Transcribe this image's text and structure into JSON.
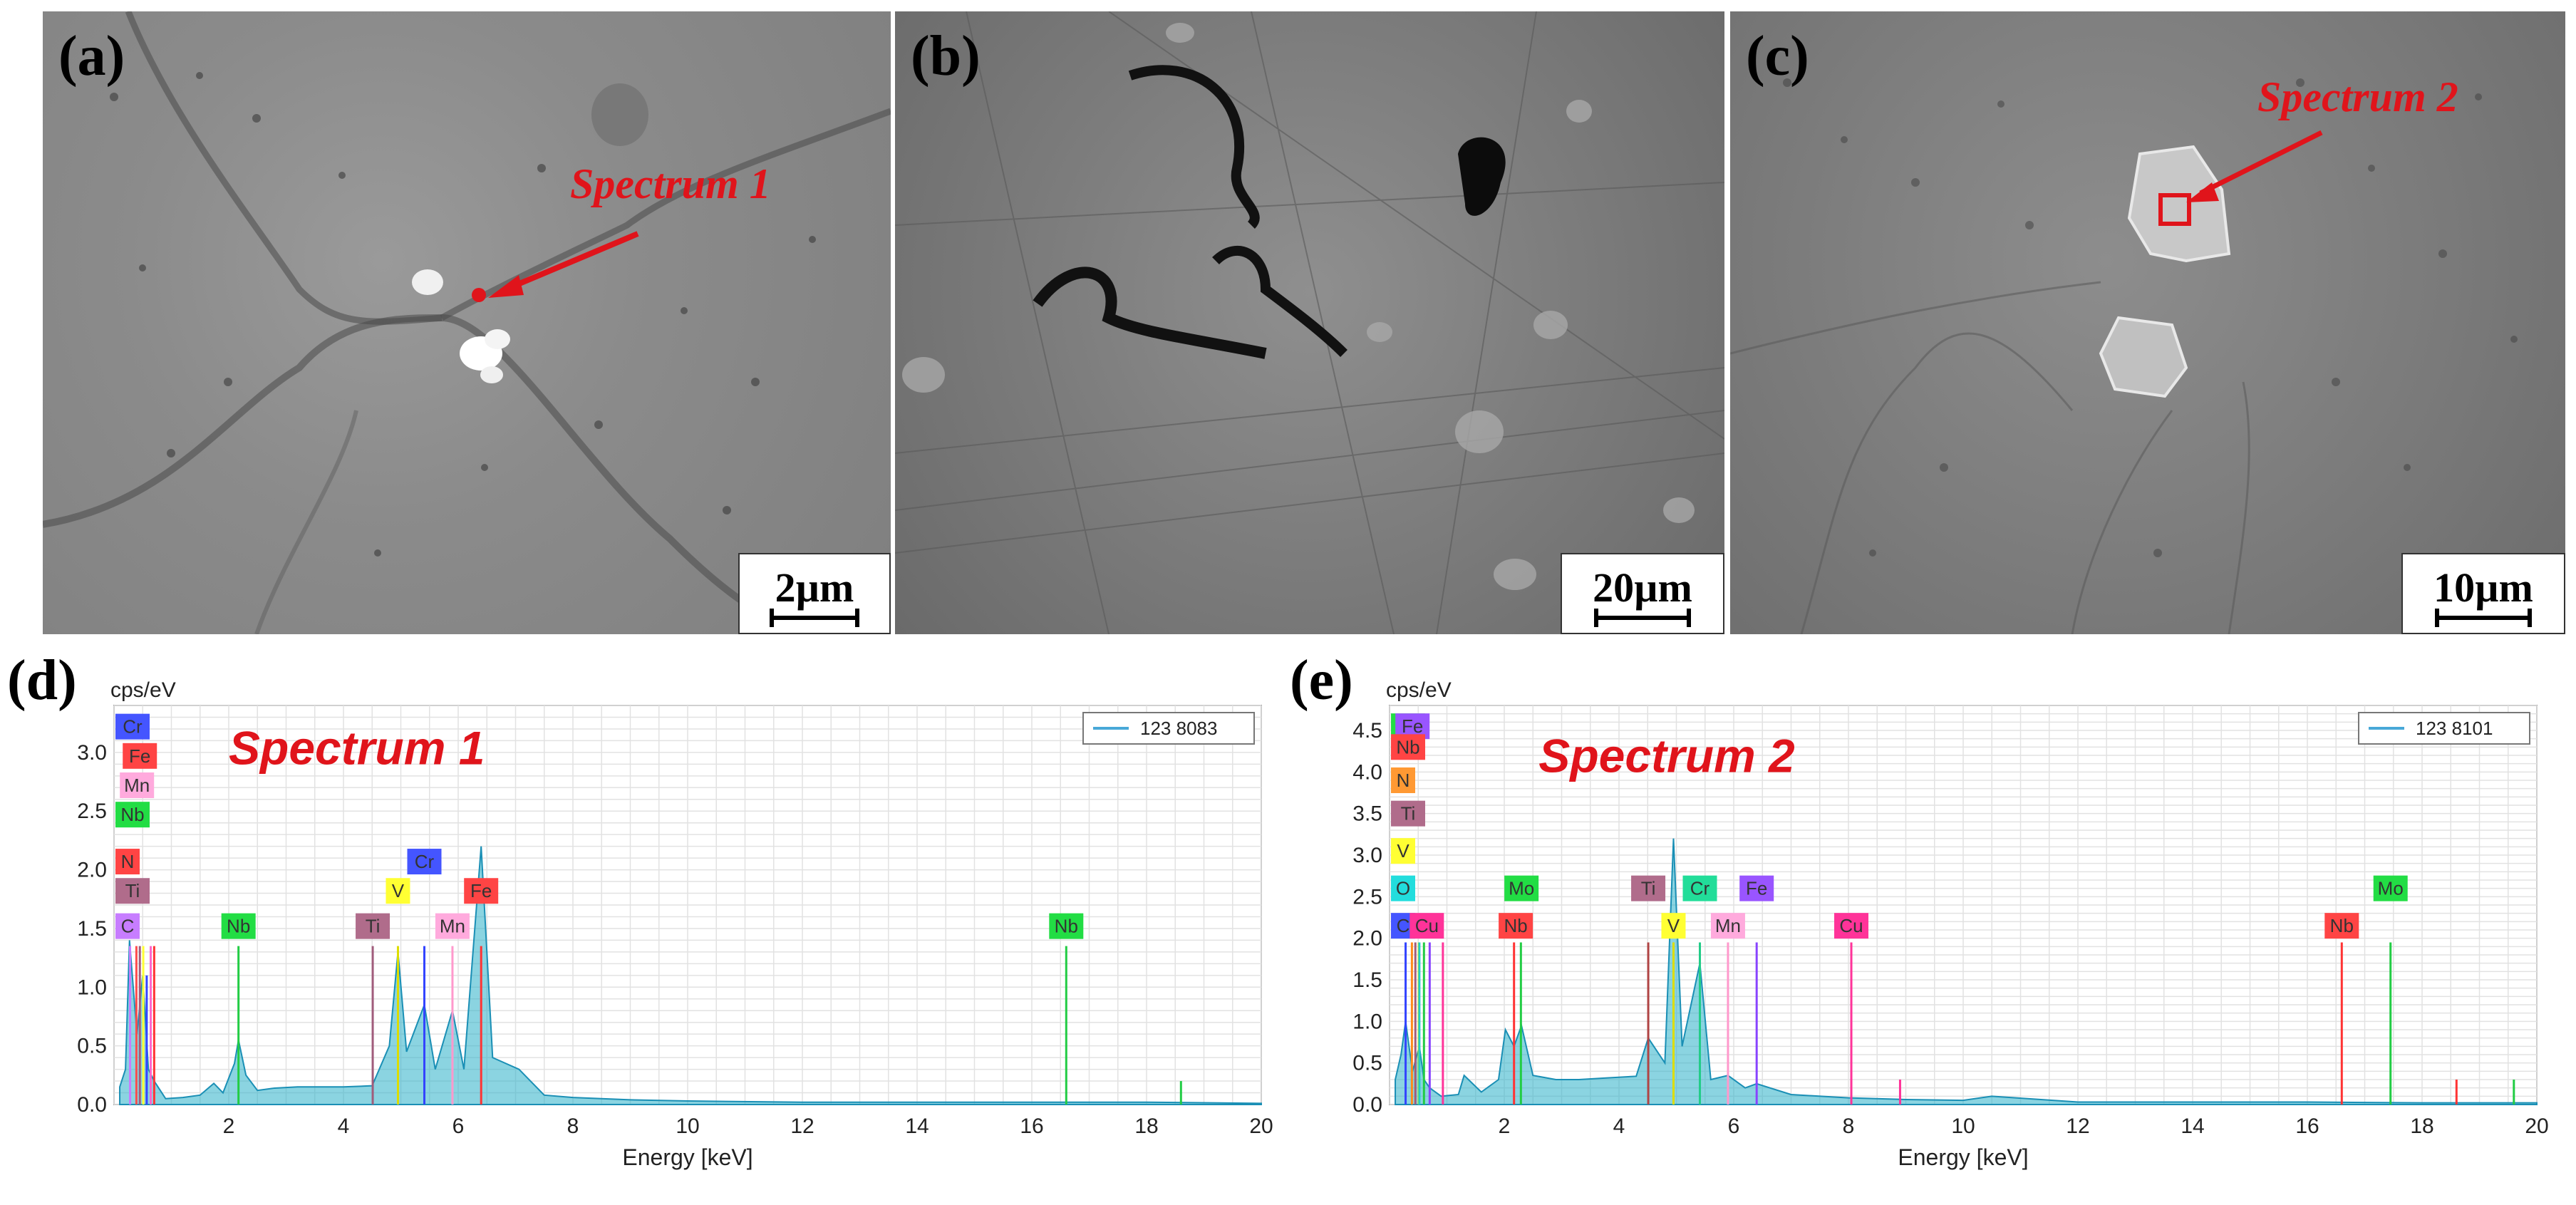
{
  "panels": {
    "a": {
      "label": "(a)",
      "spectrum_label": "Spectrum 1",
      "scale": "2µm"
    },
    "b": {
      "label": "(b)",
      "scale": "20µm"
    },
    "c": {
      "label": "(c)",
      "spectrum_label": "Spectrum 2",
      "scale": "10µm"
    },
    "d": {
      "label": "(d)"
    },
    "e": {
      "label": "(e)"
    }
  },
  "chart_data": [
    {
      "type": "line",
      "panel": "d",
      "title": "Spectrum 1",
      "ylabel": "cps/eV",
      "xlabel": "Energy [keV]",
      "xlim": [
        0,
        20
      ],
      "ylim": [
        0,
        3.4
      ],
      "xticks": [
        2,
        4,
        6,
        8,
        10,
        12,
        14,
        16,
        18,
        20
      ],
      "yticks": [
        0.0,
        0.5,
        1.0,
        1.5,
        2.0,
        2.5,
        3.0
      ],
      "legend": {
        "name": "123 8083",
        "position": "top-right"
      },
      "series": [
        {
          "name": "123 8083",
          "x": [
            0.1,
            0.2,
            0.27,
            0.4,
            0.5,
            0.6,
            0.7,
            0.9,
            1.2,
            1.5,
            1.74,
            1.9,
            2.1,
            2.17,
            2.3,
            2.5,
            2.8,
            3.2,
            3.6,
            4.0,
            4.5,
            4.8,
            4.95,
            5.1,
            5.41,
            5.6,
            5.9,
            6.1,
            6.4,
            6.6,
            7.06,
            7.5,
            8,
            9,
            10,
            12,
            14,
            16,
            18,
            20
          ],
          "y": [
            0.15,
            0.3,
            1.4,
            0.6,
            1.1,
            0.3,
            0.2,
            0.05,
            0.06,
            0.08,
            0.18,
            0.1,
            0.35,
            0.55,
            0.25,
            0.12,
            0.14,
            0.15,
            0.15,
            0.15,
            0.16,
            0.5,
            1.3,
            0.45,
            0.85,
            0.3,
            0.8,
            0.3,
            2.2,
            0.4,
            0.3,
            0.08,
            0.06,
            0.04,
            0.03,
            0.02,
            0.02,
            0.02,
            0.02,
            0.01
          ]
        }
      ],
      "markers": [
        {
          "el": "C",
          "x": 0.28,
          "h": 1.35,
          "color": "#c77dff"
        },
        {
          "el": "N",
          "x": 0.39,
          "h": 1.35,
          "color": "#ff4d4d"
        },
        {
          "el": "Ti",
          "x": 0.45,
          "h": 1.35,
          "color": "#a05c7b"
        },
        {
          "el": "V",
          "x": 0.51,
          "h": 1.35,
          "color": "#ffff33"
        },
        {
          "el": "Cr",
          "x": 0.57,
          "h": 1.1,
          "color": "#3344ff"
        },
        {
          "el": "Mn",
          "x": 0.64,
          "h": 1.35,
          "color": "#ff66cc"
        },
        {
          "el": "Fe",
          "x": 0.7,
          "h": 1.35,
          "color": "#ff3333"
        },
        {
          "el": "Nb",
          "x": 2.17,
          "h": 1.35,
          "color": "#22cc44"
        },
        {
          "el": "Ti",
          "x": 4.51,
          "h": 1.35,
          "color": "#a05c7b"
        },
        {
          "el": "V",
          "x": 4.95,
          "h": 1.35,
          "color": "#dddd00"
        },
        {
          "el": "Cr",
          "x": 5.41,
          "h": 1.35,
          "color": "#3344ff"
        },
        {
          "el": "Mn",
          "x": 5.9,
          "h": 1.35,
          "color": "#ff99cc"
        },
        {
          "el": "Fe",
          "x": 6.4,
          "h": 1.35,
          "color": "#ff3333"
        },
        {
          "el": "Nb",
          "x": 16.6,
          "h": 1.35,
          "color": "#22cc44"
        },
        {
          "el": "Nb",
          "x": 18.6,
          "h": 0.2,
          "color": "#22cc44"
        }
      ],
      "labels": [
        {
          "text": "Cr",
          "x": 0.25,
          "y": 3.22,
          "color": "#4455ff"
        },
        {
          "text": "Fe",
          "x": 0.45,
          "y": 2.97,
          "color": "#ff4444"
        },
        {
          "text": "Mn",
          "x": 0.4,
          "y": 2.72,
          "color": "#ffaadd"
        },
        {
          "text": "Nb",
          "x": -0.1,
          "y": 2.47,
          "color": "#22dd44"
        },
        {
          "text": "N",
          "x": 0.15,
          "y": 2.07,
          "color": "#ff4444"
        },
        {
          "text": "Ti",
          "x": 0.15,
          "y": 1.82,
          "color": "#b06c8b"
        },
        {
          "text": "C",
          "x": 0.05,
          "y": 1.52,
          "color": "#c77dff"
        },
        {
          "text": "Nb",
          "x": 2.17,
          "y": 1.52,
          "color": "#22dd44"
        },
        {
          "text": "Ti",
          "x": 4.51,
          "y": 1.52,
          "color": "#b06c8b"
        },
        {
          "text": "V",
          "x": 4.95,
          "y": 1.82,
          "color": "#ffff33"
        },
        {
          "text": "Cr",
          "x": 5.41,
          "y": 2.07,
          "color": "#4455ff"
        },
        {
          "text": "Mn",
          "x": 5.9,
          "y": 1.52,
          "color": "#ffaadd"
        },
        {
          "text": "Fe",
          "x": 6.4,
          "y": 1.82,
          "color": "#ff4444"
        },
        {
          "text": "Nb",
          "x": 16.6,
          "y": 1.52,
          "color": "#22dd44"
        }
      ]
    },
    {
      "type": "line",
      "panel": "e",
      "title": "Spectrum 2",
      "ylabel": "cps/eV",
      "xlabel": "Energy [keV]",
      "xlim": [
        0,
        20
      ],
      "ylim": [
        0,
        4.8
      ],
      "xticks": [
        2,
        4,
        6,
        8,
        10,
        12,
        14,
        16,
        18,
        20
      ],
      "yticks": [
        0.0,
        0.5,
        1.0,
        1.5,
        2.0,
        2.5,
        3.0,
        3.5,
        4.0,
        4.5
      ],
      "legend": {
        "name": "123 8101",
        "position": "top-right"
      },
      "series": [
        {
          "name": "123 8101",
          "x": [
            0.1,
            0.2,
            0.28,
            0.4,
            0.52,
            0.6,
            0.7,
            0.9,
            1.2,
            1.3,
            1.6,
            1.9,
            2.02,
            2.17,
            2.3,
            2.5,
            2.9,
            3.3,
            3.8,
            4.3,
            4.51,
            4.8,
            4.95,
            5.1,
            5.41,
            5.6,
            5.9,
            6.2,
            6.4,
            7,
            8,
            9,
            10,
            10.5,
            12,
            14,
            16,
            18,
            20
          ],
          "y": [
            0.3,
            0.6,
            1.0,
            0.4,
            0.7,
            0.3,
            0.2,
            0.1,
            0.12,
            0.35,
            0.15,
            0.3,
            0.9,
            0.7,
            0.95,
            0.35,
            0.3,
            0.3,
            0.32,
            0.34,
            0.8,
            0.5,
            3.2,
            0.7,
            1.7,
            0.3,
            0.35,
            0.2,
            0.25,
            0.12,
            0.08,
            0.06,
            0.05,
            0.1,
            0.03,
            0.03,
            0.03,
            0.02,
            0.02
          ]
        }
      ],
      "markers": [
        {
          "el": "C",
          "x": 0.28,
          "h": 1.95,
          "color": "#3344ff"
        },
        {
          "el": "N",
          "x": 0.39,
          "h": 1.95,
          "color": "#ff8c1a"
        },
        {
          "el": "Ti",
          "x": 0.45,
          "h": 1.95,
          "color": "#a05c7b"
        },
        {
          "el": "V",
          "x": 0.51,
          "h": 1.95,
          "color": "#dddd00"
        },
        {
          "el": "O",
          "x": 0.52,
          "h": 1.95,
          "color": "#22cccc"
        },
        {
          "el": "Mo",
          "x": 0.6,
          "h": 1.95,
          "color": "#22cc44"
        },
        {
          "el": "Fe",
          "x": 0.7,
          "h": 1.95,
          "color": "#8844ff"
        },
        {
          "el": "Cu",
          "x": 0.93,
          "h": 1.95,
          "color": "#ff3399"
        },
        {
          "el": "Nb",
          "x": 2.17,
          "h": 1.95,
          "color": "#ff3333"
        },
        {
          "el": "Mo",
          "x": 2.29,
          "h": 1.95,
          "color": "#22cc44"
        },
        {
          "el": "Ti",
          "x": 4.51,
          "h": 1.95,
          "color": "#b04444"
        },
        {
          "el": "V",
          "x": 4.95,
          "h": 1.95,
          "color": "#dddd00"
        },
        {
          "el": "Cr",
          "x": 5.41,
          "h": 1.95,
          "color": "#22cc88"
        },
        {
          "el": "Mn",
          "x": 5.9,
          "h": 1.95,
          "color": "#ff99cc"
        },
        {
          "el": "Fe",
          "x": 6.4,
          "h": 1.95,
          "color": "#8844ff"
        },
        {
          "el": "Cu",
          "x": 8.05,
          "h": 1.95,
          "color": "#ff3399"
        },
        {
          "el": "Cu",
          "x": 8.9,
          "h": 0.3,
          "color": "#ff3399"
        },
        {
          "el": "Nb",
          "x": 16.6,
          "h": 1.95,
          "color": "#ff3333"
        },
        {
          "el": "Mo",
          "x": 17.45,
          "h": 1.95,
          "color": "#22cc44"
        },
        {
          "el": "Nb",
          "x": 18.6,
          "h": 0.3,
          "color": "#ff3333"
        },
        {
          "el": "Mo",
          "x": 19.6,
          "h": 0.3,
          "color": "#22cc44"
        }
      ],
      "labels": [
        {
          "text": "Mo",
          "x": 0.05,
          "y": 4.55,
          "color": "#22dd44"
        },
        {
          "text": "Fe",
          "x": 0.4,
          "y": 4.55,
          "color": "#9955ff"
        },
        {
          "text": "Nb",
          "x": -0.05,
          "y": 4.3,
          "color": "#ff4444"
        },
        {
          "text": "N",
          "x": 0.1,
          "y": 3.9,
          "color": "#ff9933"
        },
        {
          "text": "Ti",
          "x": 0.1,
          "y": 3.5,
          "color": "#b06c8b"
        },
        {
          "text": "V",
          "x": 0.1,
          "y": 3.05,
          "color": "#ffff33"
        },
        {
          "text": "O",
          "x": 0.2,
          "y": 2.6,
          "color": "#22dddd"
        },
        {
          "text": "C",
          "x": 0.0,
          "y": 2.15,
          "color": "#4455ff"
        },
        {
          "text": "Cu",
          "x": 0.65,
          "y": 2.15,
          "color": "#ff3399"
        },
        {
          "text": "Mo",
          "x": 2.3,
          "y": 2.6,
          "color": "#22dd44"
        },
        {
          "text": "Nb",
          "x": 2.2,
          "y": 2.15,
          "color": "#ff4444"
        },
        {
          "text": "Ti",
          "x": 4.51,
          "y": 2.6,
          "color": "#b06c8b"
        },
        {
          "text": "Cr",
          "x": 5.41,
          "y": 2.6,
          "color": "#22dd99"
        },
        {
          "text": "Fe",
          "x": 6.4,
          "y": 2.6,
          "color": "#9955ff"
        },
        {
          "text": "V",
          "x": 4.95,
          "y": 2.15,
          "color": "#ffff33"
        },
        {
          "text": "Mn",
          "x": 5.9,
          "y": 2.15,
          "color": "#ffaadd"
        },
        {
          "text": "Cu",
          "x": 8.05,
          "y": 2.15,
          "color": "#ff3399"
        },
        {
          "text": "Nb",
          "x": 16.6,
          "y": 2.15,
          "color": "#ff4444"
        },
        {
          "text": "Mo",
          "x": 17.45,
          "y": 2.6,
          "color": "#22dd44"
        }
      ]
    }
  ]
}
